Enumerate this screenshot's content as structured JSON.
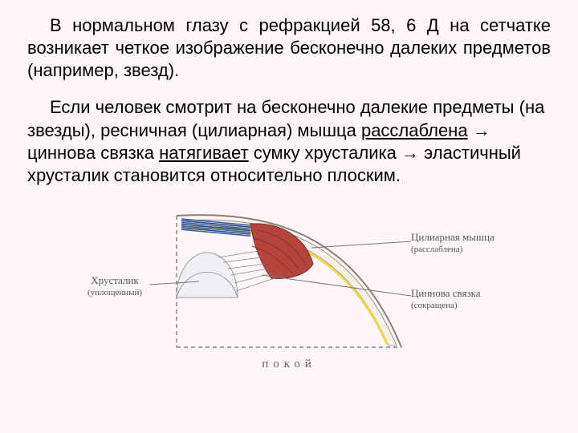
{
  "background": "#fff6f7",
  "text": {
    "p1": {
      "t1": "В нормальном глазу с рефракцией 58, 6 Д на сетчатке  возникает  четкое  изображение   бесконечно далеких предметов (например, звезд)."
    },
    "p2": {
      "t1": "Если человек смотрит на бесконечно далекие предметы  (на звезды),   ресничная  (цилиарная) мышца ",
      "u1": "расслаблена",
      "t2": " → циннова связка ",
      "u2": "натягивает",
      "t3": " сумку хрусталика → эластичный хрусталик становится относительно плоским."
    }
  },
  "labels": {
    "left1": "Хрусталик",
    "left1s": "(уплощенный)",
    "right1": "Цилиарная мышца",
    "right1s": "(расслаблена)",
    "right2": "Циннова связка",
    "right2s": "(сокращена)",
    "bottom": "покой"
  },
  "colors": {
    "lens_fill": "#eef0f4",
    "muscle_fill": "#b5443b",
    "muscle_dark": "#7b2d26",
    "sclera_line": "#8a8075",
    "sclera_fill": "#f7f2e8",
    "retina_line": "#efd64a",
    "dash": "#6b6b6b",
    "callout": "#777",
    "iris_band": "#3560a8",
    "iris_band2": "#2a4a82"
  }
}
